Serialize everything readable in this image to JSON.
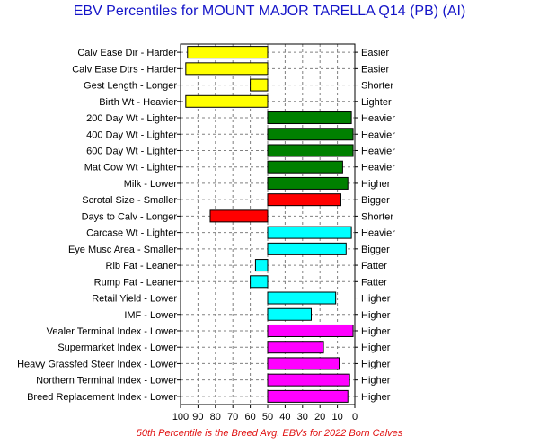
{
  "chart_data": {
    "type": "bar",
    "title": "EBV Percentiles for MOUNT MAJOR TARELLA Q14 (PB) (AI)",
    "footnote": "50th Percentile is the Breed Avg. EBVs for 2022 Born Calves",
    "xlim": [
      100,
      0
    ],
    "baseline": 50,
    "x_ticks": [
      100,
      90,
      80,
      70,
      60,
      50,
      40,
      30,
      20,
      10,
      0
    ],
    "grid": true,
    "colors": {
      "calving": "#ffff00",
      "growth": "#008000",
      "fertility": "#ff0000",
      "carcase": "#00ffff",
      "index": "#ff00ff"
    },
    "traits": [
      {
        "label": "Calv Ease Dir - Harder",
        "right": "Easier",
        "value": 96,
        "group": "calving"
      },
      {
        "label": "Calv Ease Dtrs - Harder",
        "right": "Easier",
        "value": 97,
        "group": "calving"
      },
      {
        "label": "Gest Length - Longer",
        "right": "Shorter",
        "value": 60,
        "group": "calving"
      },
      {
        "label": "Birth Wt - Heavier",
        "right": "Lighter",
        "value": 97,
        "group": "calving"
      },
      {
        "label": "200 Day Wt - Lighter",
        "right": "Heavier",
        "value": 2,
        "group": "growth"
      },
      {
        "label": "400 Day Wt - Lighter",
        "right": "Heavier",
        "value": 1,
        "group": "growth"
      },
      {
        "label": "600 Day Wt - Lighter",
        "right": "Heavier",
        "value": 1,
        "group": "growth"
      },
      {
        "label": "Mat Cow Wt - Lighter",
        "right": "Heavier",
        "value": 7,
        "group": "growth"
      },
      {
        "label": "Milk - Lower",
        "right": "Higher",
        "value": 4,
        "group": "growth"
      },
      {
        "label": "Scrotal Size - Smaller",
        "right": "Bigger",
        "value": 8,
        "group": "fertility"
      },
      {
        "label": "Days to Calv - Longer",
        "right": "Shorter",
        "value": 83,
        "group": "fertility"
      },
      {
        "label": "Carcase Wt - Lighter",
        "right": "Heavier",
        "value": 2,
        "group": "carcase"
      },
      {
        "label": "Eye Musc Area - Smaller",
        "right": "Bigger",
        "value": 5,
        "group": "carcase"
      },
      {
        "label": "Rib Fat - Leaner",
        "right": "Fatter",
        "value": 57,
        "group": "carcase"
      },
      {
        "label": "Rump Fat - Leaner",
        "right": "Fatter",
        "value": 60,
        "group": "carcase"
      },
      {
        "label": "Retail Yield - Lower",
        "right": "Higher",
        "value": 11,
        "group": "carcase"
      },
      {
        "label": "IMF - Lower",
        "right": "Higher",
        "value": 25,
        "group": "carcase"
      },
      {
        "label": "Vealer Terminal Index - Lower",
        "right": "Higher",
        "value": 1,
        "group": "index"
      },
      {
        "label": "Supermarket Index - Lower",
        "right": "Higher",
        "value": 18,
        "group": "index"
      },
      {
        "label": "Heavy Grassfed Steer Index - Lower",
        "right": "Higher",
        "value": 9,
        "group": "index"
      },
      {
        "label": "Northern Terminal Index - Lower",
        "right": "Higher",
        "value": 3,
        "group": "index"
      },
      {
        "label": "Breed Replacement Index - Lower",
        "right": "Higher",
        "value": 4,
        "group": "index"
      }
    ]
  }
}
